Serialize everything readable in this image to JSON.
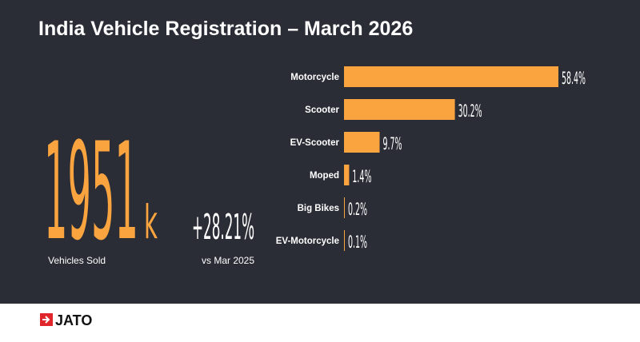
{
  "chart_data": {
    "type": "bar",
    "orientation": "horizontal",
    "title": "India Vehicle Registration – March 2026",
    "categories": [
      "Motorcycle",
      "Scooter",
      "EV-Scooter",
      "Moped",
      "Big Bikes",
      "EV-Motorcycle"
    ],
    "values": [
      58.4,
      30.2,
      9.7,
      1.4,
      0.2,
      0.1
    ],
    "value_labels": [
      "58.4%",
      "30.2%",
      "9.7%",
      "1.4%",
      "0.2%",
      "0.1%"
    ],
    "color": "#f9a43f"
  },
  "kpi": {
    "value": "1951",
    "unit": "k",
    "label": "Vehicles Sold"
  },
  "change": {
    "value": "+28.21%",
    "label": "vs Mar 2025"
  },
  "footer": {
    "brand": "JATO"
  }
}
